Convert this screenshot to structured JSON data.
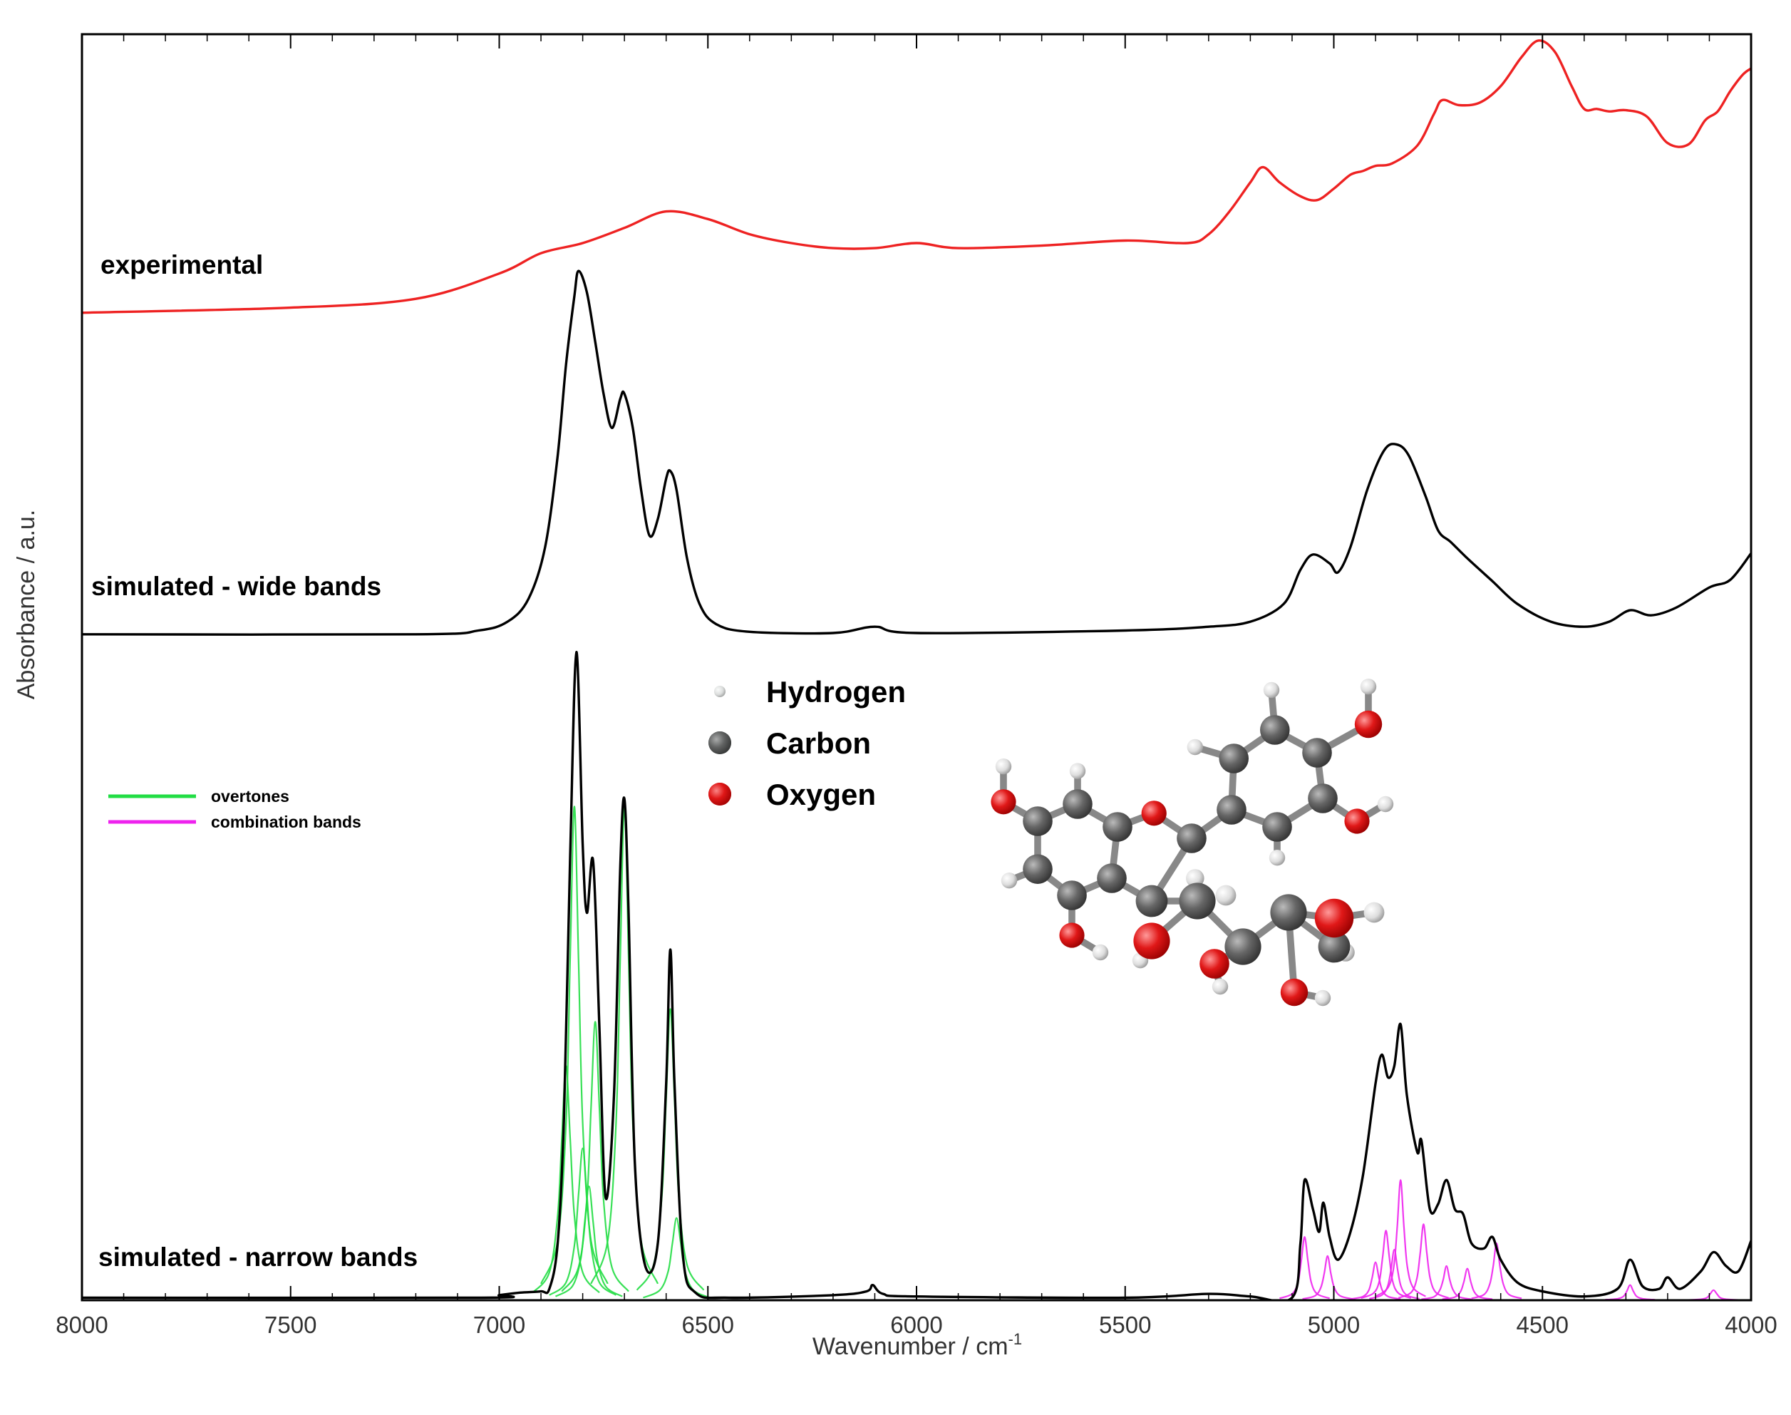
{
  "chart_data": {
    "type": "line",
    "x_label": {
      "text": "Wavenumber / cm",
      "superscript": "-1"
    },
    "y_label": "Absorbance / a.u.",
    "xlim": [
      8000,
      4000
    ],
    "ylim": [
      0,
      100
    ],
    "xticks": [
      8000,
      7500,
      7000,
      6500,
      6000,
      5500,
      5000,
      4500,
      4000
    ],
    "xminorticks": [
      7900,
      7800,
      7700,
      7600,
      7400,
      7300,
      7200,
      7100,
      6900,
      6800,
      6700,
      6600,
      6400,
      6300,
      6200,
      6100,
      5900,
      5800,
      5700,
      5600,
      5400,
      5300,
      5200,
      5100,
      4900,
      4800,
      4700,
      4600,
      4400,
      4300,
      4200,
      4100
    ],
    "series": [
      {
        "name": "experimental",
        "color": "#ee2222",
        "label": "inline",
        "x": [
          8000,
          7500,
          7200,
          7000,
          6900,
          6800,
          6700,
          6600,
          6500,
          6400,
          6300,
          6200,
          6100,
          6000,
          5900,
          5700,
          5500,
          5350,
          5300,
          5250,
          5200,
          5170,
          5130,
          5080,
          5040,
          5000,
          4960,
          4930,
          4900,
          4860,
          4800,
          4760,
          4740,
          4700,
          4650,
          4600,
          4550,
          4510,
          4470,
          4430,
          4400,
          4370,
          4340,
          4300,
          4250,
          4200,
          4150,
          4110,
          4080,
          4050,
          4020,
          4000
        ],
        "values": [
          78.0,
          78.4,
          79.1,
          81.1,
          82.7,
          83.5,
          84.7,
          86.0,
          85.4,
          84.2,
          83.5,
          83.1,
          83.1,
          83.5,
          83.1,
          83.3,
          83.7,
          83.5,
          84.2,
          86.0,
          88.3,
          89.5,
          88.3,
          87.2,
          86.9,
          87.8,
          88.9,
          89.2,
          89.6,
          89.8,
          91.2,
          93.7,
          94.8,
          94.4,
          94.6,
          95.9,
          98.2,
          99.5,
          98.6,
          95.9,
          94.1,
          94.1,
          93.9,
          94.0,
          93.5,
          91.4,
          91.3,
          93.2,
          93.9,
          95.5,
          96.8,
          97.3
        ]
      },
      {
        "name": "simulated - wide bands",
        "color": "#000000",
        "label": "inline",
        "x": [
          8000,
          7200,
          7050,
          6980,
          6930,
          6890,
          6860,
          6840,
          6820,
          6810,
          6790,
          6770,
          6750,
          6730,
          6710,
          6700,
          6680,
          6660,
          6640,
          6620,
          6600,
          6590,
          6575,
          6550,
          6520,
          6480,
          6400,
          6200,
          6100,
          6000,
          5500,
          5300,
          5200,
          5120,
          5080,
          5050,
          5010,
          4990,
          4960,
          4920,
          4880,
          4850,
          4820,
          4780,
          4750,
          4720,
          4680,
          4620,
          4560,
          4480,
          4400,
          4340,
          4290,
          4240,
          4180,
          4100,
          4050,
          4000
        ],
        "values": [
          52.6,
          52.6,
          52.9,
          53.6,
          55.4,
          59.5,
          66.7,
          73.9,
          79.3,
          81.3,
          79.6,
          75.7,
          71.6,
          68.9,
          71.2,
          71.6,
          68.9,
          64.0,
          60.4,
          61.7,
          64.9,
          65.5,
          64.0,
          58.6,
          55.0,
          53.4,
          52.8,
          52.7,
          53.2,
          52.7,
          52.9,
          53.2,
          53.6,
          55.0,
          57.7,
          58.9,
          58.2,
          57.5,
          59.5,
          64.0,
          67.1,
          67.6,
          66.7,
          63.5,
          60.8,
          59.9,
          58.6,
          56.8,
          55.0,
          53.6,
          53.2,
          53.6,
          54.5,
          54.1,
          54.7,
          56.3,
          56.9,
          59.0
        ]
      },
      {
        "name": "simulated - narrow bands",
        "color": "#000000",
        "label": "inline",
        "x": [
          8000,
          7050,
          7000,
          6950,
          6900,
          6880,
          6860,
          6845,
          6830,
          6815,
          6800,
          6790,
          6775,
          6760,
          6745,
          6725,
          6710,
          6700,
          6690,
          6675,
          6650,
          6620,
          6600,
          6590,
          6580,
          6560,
          6530,
          6450,
          6200,
          6120,
          6105,
          6080,
          6000,
          5500,
          5300,
          5200,
          5100,
          5080,
          5070,
          5050,
          5035,
          5025,
          5010,
          4990,
          4960,
          4930,
          4900,
          4885,
          4870,
          4855,
          4840,
          4825,
          4800,
          4790,
          4770,
          4750,
          4730,
          4710,
          4690,
          4670,
          4640,
          4620,
          4600,
          4560,
          4500,
          4400,
          4320,
          4290,
          4260,
          4220,
          4200,
          4170,
          4120,
          4090,
          4060,
          4030,
          4000
        ],
        "values": [
          0.2,
          0.2,
          0.4,
          0.6,
          0.7,
          0.9,
          4.5,
          14.4,
          35.1,
          51.2,
          36.0,
          30.6,
          34.7,
          21.6,
          8.1,
          16.2,
          34.2,
          39.6,
          30.6,
          10.8,
          2.7,
          4.5,
          17.1,
          27.7,
          17.1,
          3.6,
          0.6,
          0.2,
          0.4,
          0.7,
          1.2,
          0.5,
          0.3,
          0.2,
          0.5,
          0.3,
          0.2,
          4.5,
          9.5,
          7.2,
          5.4,
          7.7,
          5.0,
          3.2,
          5.4,
          9.9,
          17.1,
          19.4,
          17.6,
          18.5,
          21.8,
          16.2,
          11.7,
          12.6,
          7.2,
          7.6,
          9.5,
          7.2,
          6.8,
          4.5,
          4.1,
          5.0,
          3.2,
          1.4,
          0.7,
          0.3,
          0.9,
          3.2,
          1.1,
          0.9,
          1.8,
          0.9,
          2.3,
          3.8,
          2.7,
          2.3,
          4.7
        ]
      },
      {
        "name": "overtones",
        "color": "#22dd44",
        "label": "legend",
        "components": [
          {
            "x": [
              6920,
              6880,
              6860,
              6850,
              6840,
              6830,
              6820,
              6800,
              6760
            ],
            "values": [
              0.6,
              2.2,
              6.7,
              12.8,
              18.5,
              12.8,
              6.7,
              2.2,
              0.6
            ]
          },
          {
            "x": [
              6900,
              6860,
              6840,
              6830,
              6820,
              6810,
              6800,
              6780,
              6740
            ],
            "values": [
              1.3,
              4.7,
              14,
              27,
              39,
              27,
              14,
              4.7,
              1.3
            ]
          },
          {
            "x": [
              6880,
              6840,
              6820,
              6810,
              6800,
              6790,
              6780,
              6760,
              6720
            ],
            "values": [
              0.4,
              1.4,
              4.3,
              8.3,
              12,
              8.3,
              4.3,
              1.4,
              0.4
            ]
          },
          {
            "x": [
              6865,
              6825,
              6805,
              6795,
              6785,
              6775,
              6765,
              6745,
              6705
            ],
            "values": [
              0.3,
              1.1,
              3.2,
              6.2,
              9,
              6.2,
              3.2,
              1.1,
              0.3
            ]
          },
          {
            "x": [
              6850,
              6810,
              6790,
              6780,
              6770,
              6760,
              6750,
              6730,
              6690
            ],
            "values": [
              0.7,
              2.6,
              7.9,
              15.2,
              22,
              15.2,
              7.9,
              2.6,
              0.7
            ]
          },
          {
            "x": [
              6780,
              6740,
              6720,
              6710,
              6700,
              6690,
              6680,
              6660,
              6620
            ],
            "values": [
              1.3,
              4.7,
              14,
              27,
              39,
              27,
              14,
              4.7,
              1.3
            ]
          },
          {
            "x": [
              6670,
              6630,
              6610,
              6600,
              6590,
              6580,
              6570,
              6550,
              6510
            ],
            "values": [
              0.8,
              2.8,
              8.3,
              15.9,
              23,
              15.9,
              8.3,
              2.8,
              0.8
            ]
          },
          {
            "x": [
              6655,
              6615,
              6595,
              6585,
              6575,
              6565,
              6555,
              6535,
              6495
            ],
            "values": [
              0.2,
              0.8,
              2.3,
              4.5,
              6.5,
              4.5,
              2.3,
              0.8,
              0.2
            ]
          }
        ]
      },
      {
        "name": "combination bands",
        "color": "#ee22ee",
        "label": "legend",
        "components": [
          {
            "x": [
              5130,
              5100,
              5086,
              5078,
              5070,
              5062,
              5054,
              5040,
              5010
            ],
            "values": [
              0.15,
              0.5,
              1.4,
              3.1,
              5,
              3.1,
              1.4,
              0.5,
              0.15
            ]
          },
          {
            "x": [
              5075,
              5045,
              5031,
              5023,
              5015,
              5007,
              4999,
              4985,
              4955
            ],
            "values": [
              0.1,
              0.35,
              1,
              2.1,
              3.5,
              2.1,
              1,
              0.35,
              0.1
            ]
          },
          {
            "x": [
              4960,
              4930,
              4916,
              4908,
              4900,
              4892,
              4884,
              4870,
              4840
            ],
            "values": [
              0.09,
              0.3,
              0.8,
              1.8,
              3,
              1.8,
              0.8,
              0.3,
              0.09
            ]
          },
          {
            "x": [
              4935,
              4905,
              4891,
              4883,
              4875,
              4867,
              4859,
              4845,
              4815
            ],
            "values": [
              0.17,
              0.55,
              1.5,
              3.4,
              5.5,
              3.4,
              1.5,
              0.55,
              0.17
            ]
          },
          {
            "x": [
              4915,
              4885,
              4871,
              4863,
              4855,
              4847,
              4839,
              4825,
              4795
            ],
            "values": [
              0.12,
              0.4,
              1.1,
              2.4,
              4,
              2.4,
              1.1,
              0.4,
              0.12
            ]
          },
          {
            "x": [
              4900,
              4870,
              4856,
              4848,
              4840,
              4832,
              4824,
              4810,
              4780
            ],
            "values": [
              0.3,
              1,
              2.7,
              5.8,
              9.5,
              5.8,
              2.7,
              1,
              0.3
            ]
          },
          {
            "x": [
              4845,
              4815,
              4801,
              4793,
              4785,
              4777,
              4769,
              4755,
              4725
            ],
            "values": [
              0.18,
              0.6,
              1.7,
              3.7,
              6,
              3.7,
              1.7,
              0.6,
              0.18
            ]
          },
          {
            "x": [
              4790,
              4760,
              4746,
              4738,
              4730,
              4722,
              4714,
              4700,
              4670
            ],
            "values": [
              0.08,
              0.27,
              0.8,
              1.6,
              2.7,
              1.6,
              0.8,
              0.27,
              0.08
            ]
          },
          {
            "x": [
              4740,
              4710,
              4696,
              4688,
              4680,
              4672,
              4664,
              4650,
              4620
            ],
            "values": [
              0.08,
              0.25,
              0.7,
              1.5,
              2.5,
              1.5,
              0.7,
              0.25,
              0.08
            ]
          },
          {
            "x": [
              4670,
              4640,
              4626,
              4618,
              4610,
              4602,
              4594,
              4580,
              4550
            ],
            "values": [
              0.14,
              0.45,
              1.3,
              2.7,
              4.5,
              2.7,
              1.3,
              0.45,
              0.14
            ]
          },
          {
            "x": [
              4350,
              4320,
              4306,
              4298,
              4290,
              4282,
              4274,
              4260,
              4230
            ],
            "values": [
              0.04,
              0.12,
              0.3,
              0.7,
              1.2,
              0.7,
              0.3,
              0.12,
              0.04
            ]
          },
          {
            "x": [
              4150,
              4120,
              4106,
              4098,
              4090,
              4082,
              4074,
              4060,
              4030
            ],
            "values": [
              0.02,
              0.08,
              0.2,
              0.5,
              0.8,
              0.5,
              0.2,
              0.08,
              0.02
            ]
          }
        ]
      }
    ],
    "atoms": [
      {
        "label": "Hydrogen",
        "color": "#d8e4df"
      },
      {
        "label": "Carbon",
        "color": "#4a5552"
      },
      {
        "label": "Oxygen",
        "color": "#dd1111"
      }
    ]
  }
}
